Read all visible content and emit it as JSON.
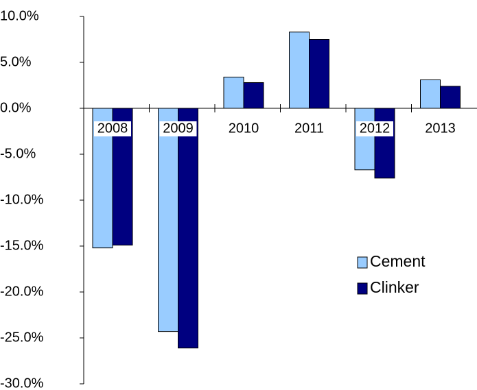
{
  "chart_data": {
    "type": "bar",
    "categories": [
      "2008",
      "2009",
      "2010",
      "2011",
      "2012",
      "2013"
    ],
    "series": [
      {
        "name": "Cement",
        "color": "#99ccff",
        "values": [
          -15.2,
          -24.3,
          3.4,
          8.3,
          -6.7,
          3.1
        ]
      },
      {
        "name": "Clinker",
        "color": "#000080",
        "values": [
          -14.9,
          -26.1,
          2.8,
          7.5,
          -7.6,
          2.4
        ]
      }
    ],
    "ylim": [
      -30,
      10
    ],
    "yticks": [
      {
        "value": -30,
        "label": "-30.0%"
      },
      {
        "value": -25,
        "label": "-25.0%"
      },
      {
        "value": -20,
        "label": "-20.0%"
      },
      {
        "value": -15,
        "label": "-15.0%"
      },
      {
        "value": -10,
        "label": "-10.0%"
      },
      {
        "value": -5,
        "label": "-5.0%"
      },
      {
        "value": 0,
        "label": "0.0%"
      },
      {
        "value": 5,
        "label": "5.0%"
      },
      {
        "value": 10,
        "label": "10.0%"
      }
    ],
    "grid": false,
    "legend": "right"
  }
}
